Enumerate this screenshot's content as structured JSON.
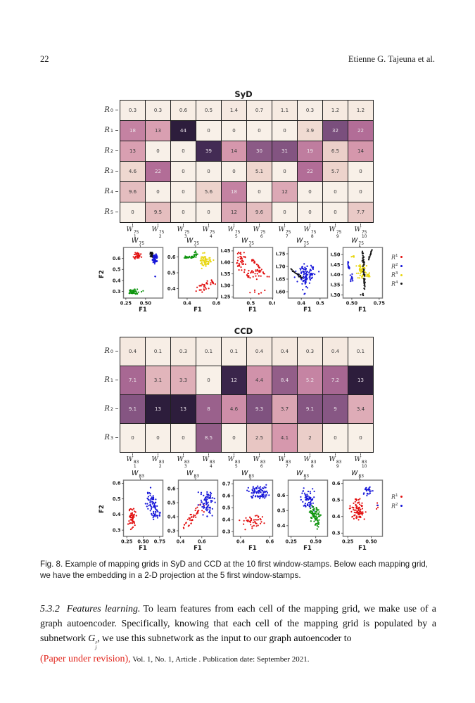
{
  "page": {
    "number": "22",
    "authors": "Etienne G. Tajeuna et al."
  },
  "colors": {
    "heatmap_stops": [
      [
        0,
        248,
        240,
        232
      ],
      [
        0.08,
        241,
        221,
        211
      ],
      [
        0.2,
        231,
        196,
        194
      ],
      [
        0.32,
        213,
        150,
        172
      ],
      [
        0.5,
        178,
        109,
        151
      ],
      [
        0.68,
        140,
        90,
        134
      ],
      [
        0.8,
        95,
        62,
        110
      ],
      [
        0.9,
        62,
        40,
        80
      ],
      [
        1,
        45,
        29,
        60
      ]
    ],
    "cell_text_dark": "#3a3a3a",
    "cell_text_light": "#ece4eb",
    "spine": "#7a7a7a",
    "markers": {
      "r": "#e21212",
      "b": "#1616d9",
      "g": "#0d940d",
      "y": "#e8d60f",
      "k": "#141414"
    }
  },
  "sections": [
    {
      "id": "syd",
      "title": "SyD",
      "heatmap": {
        "row_base": "R",
        "row_sups": [
          "0",
          "1",
          "2",
          "3",
          "4",
          "5"
        ],
        "col_base": "W",
        "col_sup": "75",
        "col_subs": [
          "1",
          "2",
          "3",
          "4",
          "5",
          "6",
          "7",
          "8",
          "9",
          "10"
        ],
        "max": 44,
        "values": [
          [
            "0.3",
            "0.3",
            "0.6",
            "0.5",
            "1.4",
            "0.7",
            "1.1",
            "0.3",
            "1.2",
            "1.2"
          ],
          [
            "18",
            "13",
            "44",
            "0",
            "0",
            "0",
            "0",
            "3.9",
            "32",
            "22"
          ],
          [
            "13",
            "0",
            "0",
            "39",
            "14",
            "30",
            "31",
            "19",
            "6.5",
            "14"
          ],
          [
            "4.6",
            "22",
            "0",
            "0",
            "0",
            "5.1",
            "0",
            "22",
            "5.7",
            "0"
          ],
          [
            "9.6",
            "0",
            "0",
            "5.6",
            "18",
            "0",
            "12",
            "0",
            "0",
            "0"
          ],
          [
            "0",
            "9.5",
            "0",
            "0",
            "12",
            "9.6",
            "0",
            "0",
            "0",
            "7.7"
          ]
        ]
      },
      "scatter": {
        "ylabel": "F2",
        "xlabel": "F1",
        "legend": [
          {
            "base": "R",
            "sup": "1",
            "color": "r"
          },
          {
            "base": "R",
            "sup": "2",
            "color": "b"
          },
          {
            "base": "R",
            "sup": "3",
            "color": "y"
          },
          {
            "base": "R",
            "sup": "4",
            "color": "k"
          }
        ],
        "plots": [
          {
            "base": "W",
            "sup": "75",
            "sub": "1",
            "xlim": [
              0.22,
              0.72
            ],
            "ylim": [
              0.24,
              0.7
            ],
            "xticks": [
              "0.25",
              "0.50"
            ],
            "yticks": [
              "0.3",
              "0.4",
              "0.5",
              "0.6"
            ],
            "clusters": [
              {
                "c": "r",
                "n": 35,
                "x": 0.4,
                "y": 0.62,
                "sx": 0.035,
                "sy": 0.022
              },
              {
                "c": "k",
                "n": 28,
                "x": 0.575,
                "y": 0.635,
                "sx": 0.013,
                "sy": 0.024
              },
              {
                "c": "b",
                "n": 50,
                "x": 0.625,
                "y": 0.6,
                "sx": 0.025,
                "sy": 0.028
              },
              {
                "c": "g",
                "n": 40,
                "x": 0.35,
                "y": 0.295,
                "sx": 0.035,
                "sy": 0.016
              },
              {
                "c": "b",
                "n": 2,
                "x": 0.62,
                "y": 0.435,
                "sx": 0.006,
                "sy": 0.006
              },
              {
                "c": "g",
                "n": 2,
                "x": 0.46,
                "y": 0.3,
                "sx": 0.01,
                "sy": 0.005
              }
            ]
          },
          {
            "base": "W",
            "sup": "75",
            "sub": "2",
            "xlim": [
              0.34,
              0.61
            ],
            "ylim": [
              0.34,
              0.66
            ],
            "xticks": [
              "0.4",
              "0.6"
            ],
            "yticks": [
              "0.4",
              "0.5",
              "0.6"
            ],
            "clusters": [
              {
                "c": "g",
                "n": 30,
                "x": 0.375,
                "y": 0.595,
                "x2": 0.455,
                "y2": 0.6,
                "j": 0.008
              },
              {
                "c": "g",
                "n": 12,
                "x": 0.46,
                "y": 0.615,
                "sx": 0.01,
                "sy": 0.012
              },
              {
                "c": "y",
                "n": 60,
                "x": 0.525,
                "y": 0.575,
                "sx": 0.03,
                "sy": 0.03
              },
              {
                "c": "r",
                "n": 28,
                "x": 0.51,
                "y": 0.405,
                "sx": 0.04,
                "sy": 0.025
              },
              {
                "c": "r",
                "n": 8,
                "x": 0.565,
                "y": 0.455,
                "x2": 0.575,
                "y2": 0.435,
                "j": 0.004
              }
            ]
          },
          {
            "base": "W",
            "sup": "75",
            "sub": "3",
            "xlim": [
              0.42,
              0.6
            ],
            "ylim": [
              0.245,
              0.465
            ],
            "xticks": [
              "0.5",
              "0.6"
            ],
            "yticks": [
              "0.25",
              "0.30",
              "0.35",
              "0.40",
              "0.45"
            ],
            "clusters": [
              {
                "c": "r",
                "n": 40,
                "x": 0.455,
                "y": 0.405,
                "sx": 0.017,
                "sy": 0.028
              },
              {
                "c": "r",
                "n": 18,
                "x": 0.5,
                "y": 0.415,
                "x2": 0.545,
                "y2": 0.375,
                "j": 0.006
              },
              {
                "c": "r",
                "n": 14,
                "x": 0.525,
                "y": 0.37,
                "x2": 0.585,
                "y2": 0.335,
                "j": 0.005
              },
              {
                "c": "r",
                "n": 28,
                "x": 0.5,
                "y": 0.345,
                "sx": 0.033,
                "sy": 0.022
              },
              {
                "c": "r",
                "n": 6,
                "x": 0.52,
                "y": 0.27,
                "sx": 0.025,
                "sy": 0.01
              }
            ]
          },
          {
            "base": "W",
            "sup": "75",
            "sub": "4",
            "xlim": [
              0.33,
              0.54
            ],
            "ylim": [
              0.575,
              0.775
            ],
            "xticks": [
              "0.4",
              "0.5"
            ],
            "yticks": [
              "0.60",
              "0.65",
              "0.70",
              "0.75"
            ],
            "clusters": [
              {
                "c": "b",
                "n": 95,
                "x": 0.425,
                "y": 0.665,
                "sx": 0.038,
                "sy": 0.03
              },
              {
                "c": "k",
                "n": 22,
                "x": 0.345,
                "y": 0.69,
                "x2": 0.405,
                "y2": 0.655,
                "j": 0.004
              },
              {
                "c": "b",
                "n": 4,
                "x": 0.525,
                "y": 0.69,
                "sx": 0.02,
                "sy": 0.02
              },
              {
                "c": "b",
                "n": 2,
                "x": 0.425,
                "y": 0.588,
                "sx": 0.01,
                "sy": 0.004
              }
            ]
          },
          {
            "base": "W",
            "sup": "75",
            "sub": "5",
            "xlim": [
              0.42,
              0.78
            ],
            "ylim": [
              0.285,
              0.535
            ],
            "xticks": [
              "0.50",
              "0.75"
            ],
            "yticks": [
              "0.30",
              "0.35",
              "0.40",
              "0.45",
              "0.50"
            ],
            "clusters": [
              {
                "c": "b",
                "n": 16,
                "x": 0.465,
                "y": 0.47,
                "x2": 0.475,
                "y2": 0.425,
                "j": 0.005
              },
              {
                "c": "b",
                "n": 12,
                "x": 0.5,
                "y": 0.385,
                "sx": 0.01,
                "sy": 0.014
              },
              {
                "c": "y",
                "n": 50,
                "x": 0.585,
                "y": 0.42,
                "sx": 0.028,
                "sy": 0.022
              },
              {
                "c": "y",
                "n": 10,
                "x": 0.655,
                "y": 0.4,
                "sx": 0.018,
                "sy": 0.008
              },
              {
                "c": "y",
                "n": 4,
                "x": 0.51,
                "y": 0.495,
                "sx": 0.012,
                "sy": 0.008
              },
              {
                "c": "k",
                "n": 55,
                "x": 0.6,
                "y": 0.52,
                "x2": 0.615,
                "y2": 0.33,
                "j": 0.009
              },
              {
                "c": "k",
                "n": 16,
                "x": 0.655,
                "y": 0.475,
                "x2": 0.685,
                "y2": 0.525,
                "j": 0.004
              },
              {
                "c": "k",
                "n": 4,
                "x": 0.6,
                "y": 0.305,
                "sx": 0.015,
                "sy": 0.008
              }
            ]
          }
        ]
      }
    },
    {
      "id": "ccd",
      "title": "CCD",
      "heatmap": {
        "row_base": "R",
        "row_sups": [
          "0",
          "1",
          "2",
          "3"
        ],
        "col_base": "W",
        "col_sup": "83",
        "col_subs": [
          "1",
          "2",
          "3",
          "4",
          "5",
          "6",
          "7",
          "8",
          "9",
          "10"
        ],
        "max": 13,
        "values": [
          [
            "0.4",
            "0.1",
            "0.3",
            "0.1",
            "0.1",
            "0.4",
            "0.4",
            "0.3",
            "0.4",
            "0.1"
          ],
          [
            "7.1",
            "3.1",
            "3.3",
            "0",
            "12",
            "4.4",
            "8.4",
            "5.2",
            "7.2",
            "13"
          ],
          [
            "9.1",
            "13",
            "13",
            "8",
            "4.6",
            "9.3",
            "3.7",
            "9.1",
            "9",
            "3.4"
          ],
          [
            "0",
            "0",
            "0",
            "8.5",
            "0",
            "2.5",
            "4.1",
            "2",
            "0",
            "0"
          ]
        ]
      },
      "scatter": {
        "ylabel": "F2",
        "xlabel": "F1",
        "legend": [
          {
            "base": "R",
            "sup": "1",
            "color": "r"
          },
          {
            "base": "R",
            "sup": "2",
            "color": "b"
          }
        ],
        "plots": [
          {
            "base": "W",
            "sup": "83",
            "sub": "1",
            "xlim": [
              0.2,
              0.8
            ],
            "ylim": [
              0.26,
              0.62
            ],
            "xticks": [
              "0.25",
              "0.50",
              "0.75"
            ],
            "yticks": [
              "0.3",
              "0.4",
              "0.5",
              "0.6"
            ],
            "clusters": [
              {
                "c": "r",
                "n": 55,
                "x": 0.335,
                "y": 0.38,
                "sx": 0.035,
                "sy": 0.05
              },
              {
                "c": "b",
                "n": 45,
                "x": 0.615,
                "y": 0.49,
                "sx": 0.05,
                "sy": 0.045
              },
              {
                "c": "b",
                "n": 35,
                "x": 0.69,
                "y": 0.41,
                "sx": 0.045,
                "sy": 0.035
              }
            ]
          },
          {
            "base": "W",
            "sup": "83",
            "sub": "2",
            "xlim": [
              0.38,
              0.75
            ],
            "ylim": [
              0.26,
              0.66
            ],
            "xticks": [
              "0.4",
              "0.6"
            ],
            "yticks": [
              "0.3",
              "0.4",
              "0.5",
              "0.6"
            ],
            "clusters": [
              {
                "c": "r",
                "n": 42,
                "x": 0.43,
                "y": 0.31,
                "x2": 0.61,
                "y2": 0.5,
                "j": 0.035
              },
              {
                "c": "b",
                "n": 75,
                "x": 0.645,
                "y": 0.5,
                "sx": 0.045,
                "sy": 0.06
              }
            ]
          },
          {
            "base": "W",
            "sup": "83",
            "sub": "3",
            "xlim": [
              0.35,
              0.62
            ],
            "ylim": [
              0.26,
              0.73
            ],
            "xticks": [
              "0.4",
              "0.6"
            ],
            "yticks": [
              "0.3",
              "0.4",
              "0.5",
              "0.6",
              "0.7"
            ],
            "clusters": [
              {
                "c": "b",
                "n": 80,
                "x": 0.52,
                "y": 0.625,
                "sx": 0.05,
                "sy": 0.04
              },
              {
                "c": "r",
                "n": 42,
                "x": 0.5,
                "y": 0.385,
                "sx": 0.055,
                "sy": 0.035
              }
            ]
          },
          {
            "base": "W",
            "sup": "83",
            "sub": "4",
            "xlim": [
              0.22,
              0.62
            ],
            "ylim": [
              0.33,
              0.7
            ],
            "xticks": [
              "0.25",
              "0.50"
            ],
            "yticks": [
              "0.4",
              "0.5",
              "0.6"
            ],
            "clusters": [
              {
                "c": "b",
                "n": 60,
                "x": 0.415,
                "y": 0.575,
                "sx": 0.045,
                "sy": 0.045
              },
              {
                "c": "g",
                "n": 70,
                "x": 0.49,
                "y": 0.475,
                "sx": 0.04,
                "sy": 0.04
              },
              {
                "c": "g",
                "n": 10,
                "x": 0.52,
                "y": 0.4,
                "sx": 0.02,
                "sy": 0.015
              }
            ]
          },
          {
            "base": "W",
            "sup": "83",
            "sub": "5",
            "xlim": [
              0.2,
              0.62
            ],
            "ylim": [
              0.28,
              0.62
            ],
            "xticks": [
              "0.25",
              "0.50"
            ],
            "yticks": [
              "0.3",
              "0.4",
              "0.5",
              "0.6"
            ],
            "clusters": [
              {
                "c": "r",
                "n": 85,
                "x": 0.35,
                "y": 0.44,
                "sx": 0.055,
                "sy": 0.045
              },
              {
                "c": "b",
                "n": 25,
                "x": 0.465,
                "y": 0.555,
                "sx": 0.032,
                "sy": 0.026
              },
              {
                "c": "r",
                "n": 4,
                "x": 0.555,
                "y": 0.45,
                "sx": 0.015,
                "sy": 0.02
              },
              {
                "c": "b",
                "n": 2,
                "x": 0.57,
                "y": 0.47,
                "sx": 0.005,
                "sy": 0.005
              }
            ]
          }
        ]
      }
    }
  ],
  "caption": {
    "text": "Fig. 8.  Example of mapping grids in SyD and CCD at the 10 first window-stamps. Below each mapping grid, we have the embedding in a 2-D projection at the 5 first window-stamps."
  },
  "body": {
    "number": "5.3.2",
    "heading": "Features learning.",
    "text_before": "To learn features from each cell of the mapping grid, we make use of a graph autoencoder. Specifically, knowing that each cell of the mapping grid is populated by a subnetwork ",
    "formula": {
      "base": "G",
      "sup": "r",
      "sub": "j"
    },
    "text_after": ", we use this subnetwork as the input to our graph autoencoder to"
  },
  "footer": {
    "revision": "(Paper under revision),",
    "rest": " Vol. 1, No. 1, Article . Publication date: September 2021."
  }
}
